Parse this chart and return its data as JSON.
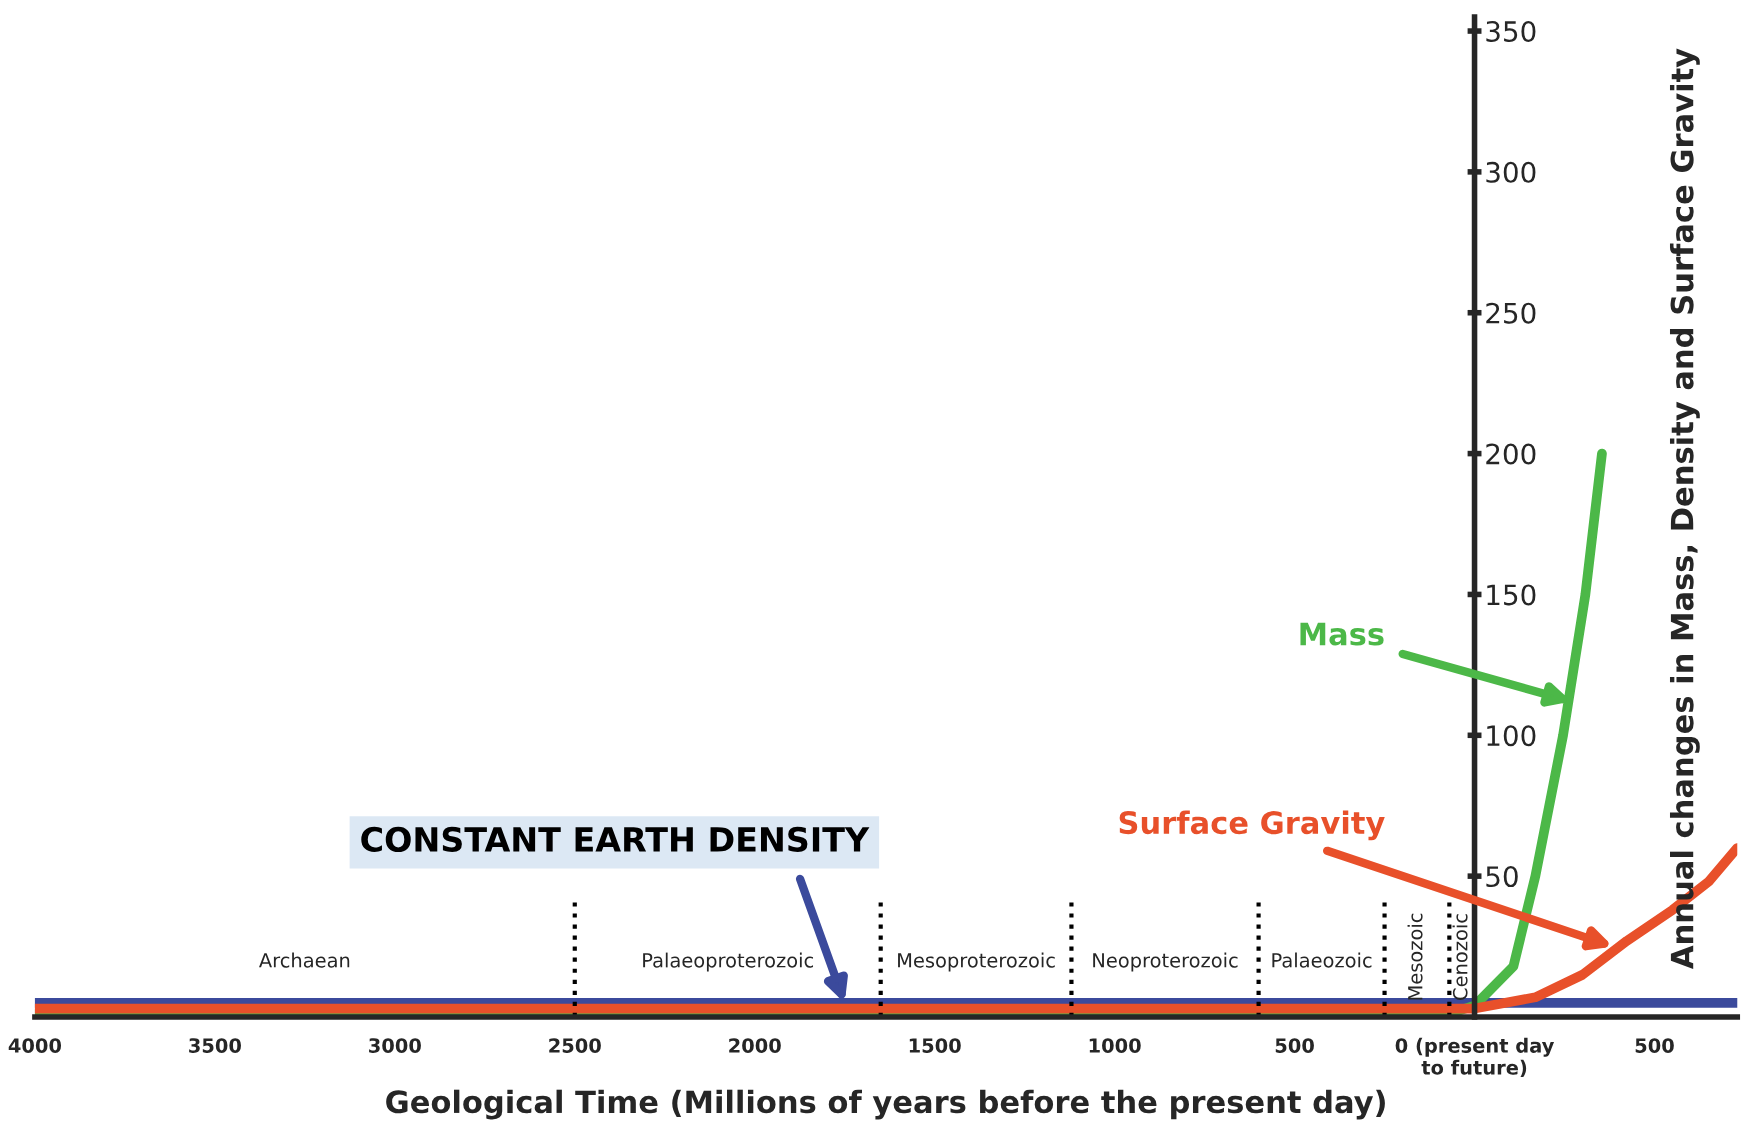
{
  "chart_data": {
    "type": "line",
    "xlabel": "Geological Time (Millions of years before the present day)",
    "ylabel": "Annual changes in Mass, Density and Surface Gravity",
    "series": [
      {
        "color": "#3b4a9c",
        "x": [
          4000,
          -730
        ],
        "values": [
          5,
          5
        ]
      },
      {
        "color": "#4cb848",
        "x": [
          4000,
          100,
          50,
          0,
          -108,
          -169,
          -246,
          -308,
          -354
        ],
        "values": [
          1,
          1,
          2,
          4,
          18,
          50,
          100,
          150,
          200
        ]
      },
      {
        "color": "#e8502a",
        "x": [
          4000,
          0,
          -169,
          -300,
          -423,
          -550,
          -650,
          -730
        ],
        "values": [
          3,
          3,
          7,
          15,
          27,
          38,
          48,
          60
        ]
      }
    ],
    "annotations": [
      {
        "text": "CONSTANT EARTH DENSITY",
        "x": 1750,
        "y": 5
      },
      {
        "text": "Mass",
        "x": -270,
        "y": 112
      },
      {
        "text": "Surface Gravity",
        "x": -385,
        "y": 25
      },
      "Archaean",
      "Palaeoproterozoic",
      "Mesoproterozoic",
      "Neoproterozoic",
      "Palaeozoic",
      "Mesozoic",
      "Cenozoic"
    ],
    "ref_lines": [
      {
        "axis": "x",
        "value": 2500,
        "color": "#000000",
        "line_style": "dotted"
      },
      {
        "axis": "x",
        "value": 1650,
        "color": "#000000",
        "line_style": "dotted"
      },
      {
        "axis": "x",
        "value": 1120,
        "color": "#000000",
        "line_style": "dotted"
      },
      {
        "axis": "x",
        "value": 600,
        "color": "#000000",
        "line_style": "dotted"
      },
      {
        "axis": "x",
        "value": 250,
        "color": "#000000",
        "line_style": "dotted"
      },
      {
        "axis": "x",
        "value": 70,
        "color": "#000000",
        "line_style": "dotted"
      }
    ],
    "xlim": [
      4000,
      -730
    ],
    "xticks": [
      4000,
      3500,
      3000,
      2500,
      2000,
      1500,
      1000,
      500,
      {
        "value": 0,
        "label": "0 (present day\nto future)"
      },
      {
        "value": -500,
        "label": "500"
      }
    ],
    "ylim": [
      0,
      355
    ],
    "yticks": [
      50,
      100,
      150,
      200,
      250,
      300,
      350
    ],
    "grid": false,
    "legend": false,
    "marker": "none",
    "line_style": "solid"
  }
}
